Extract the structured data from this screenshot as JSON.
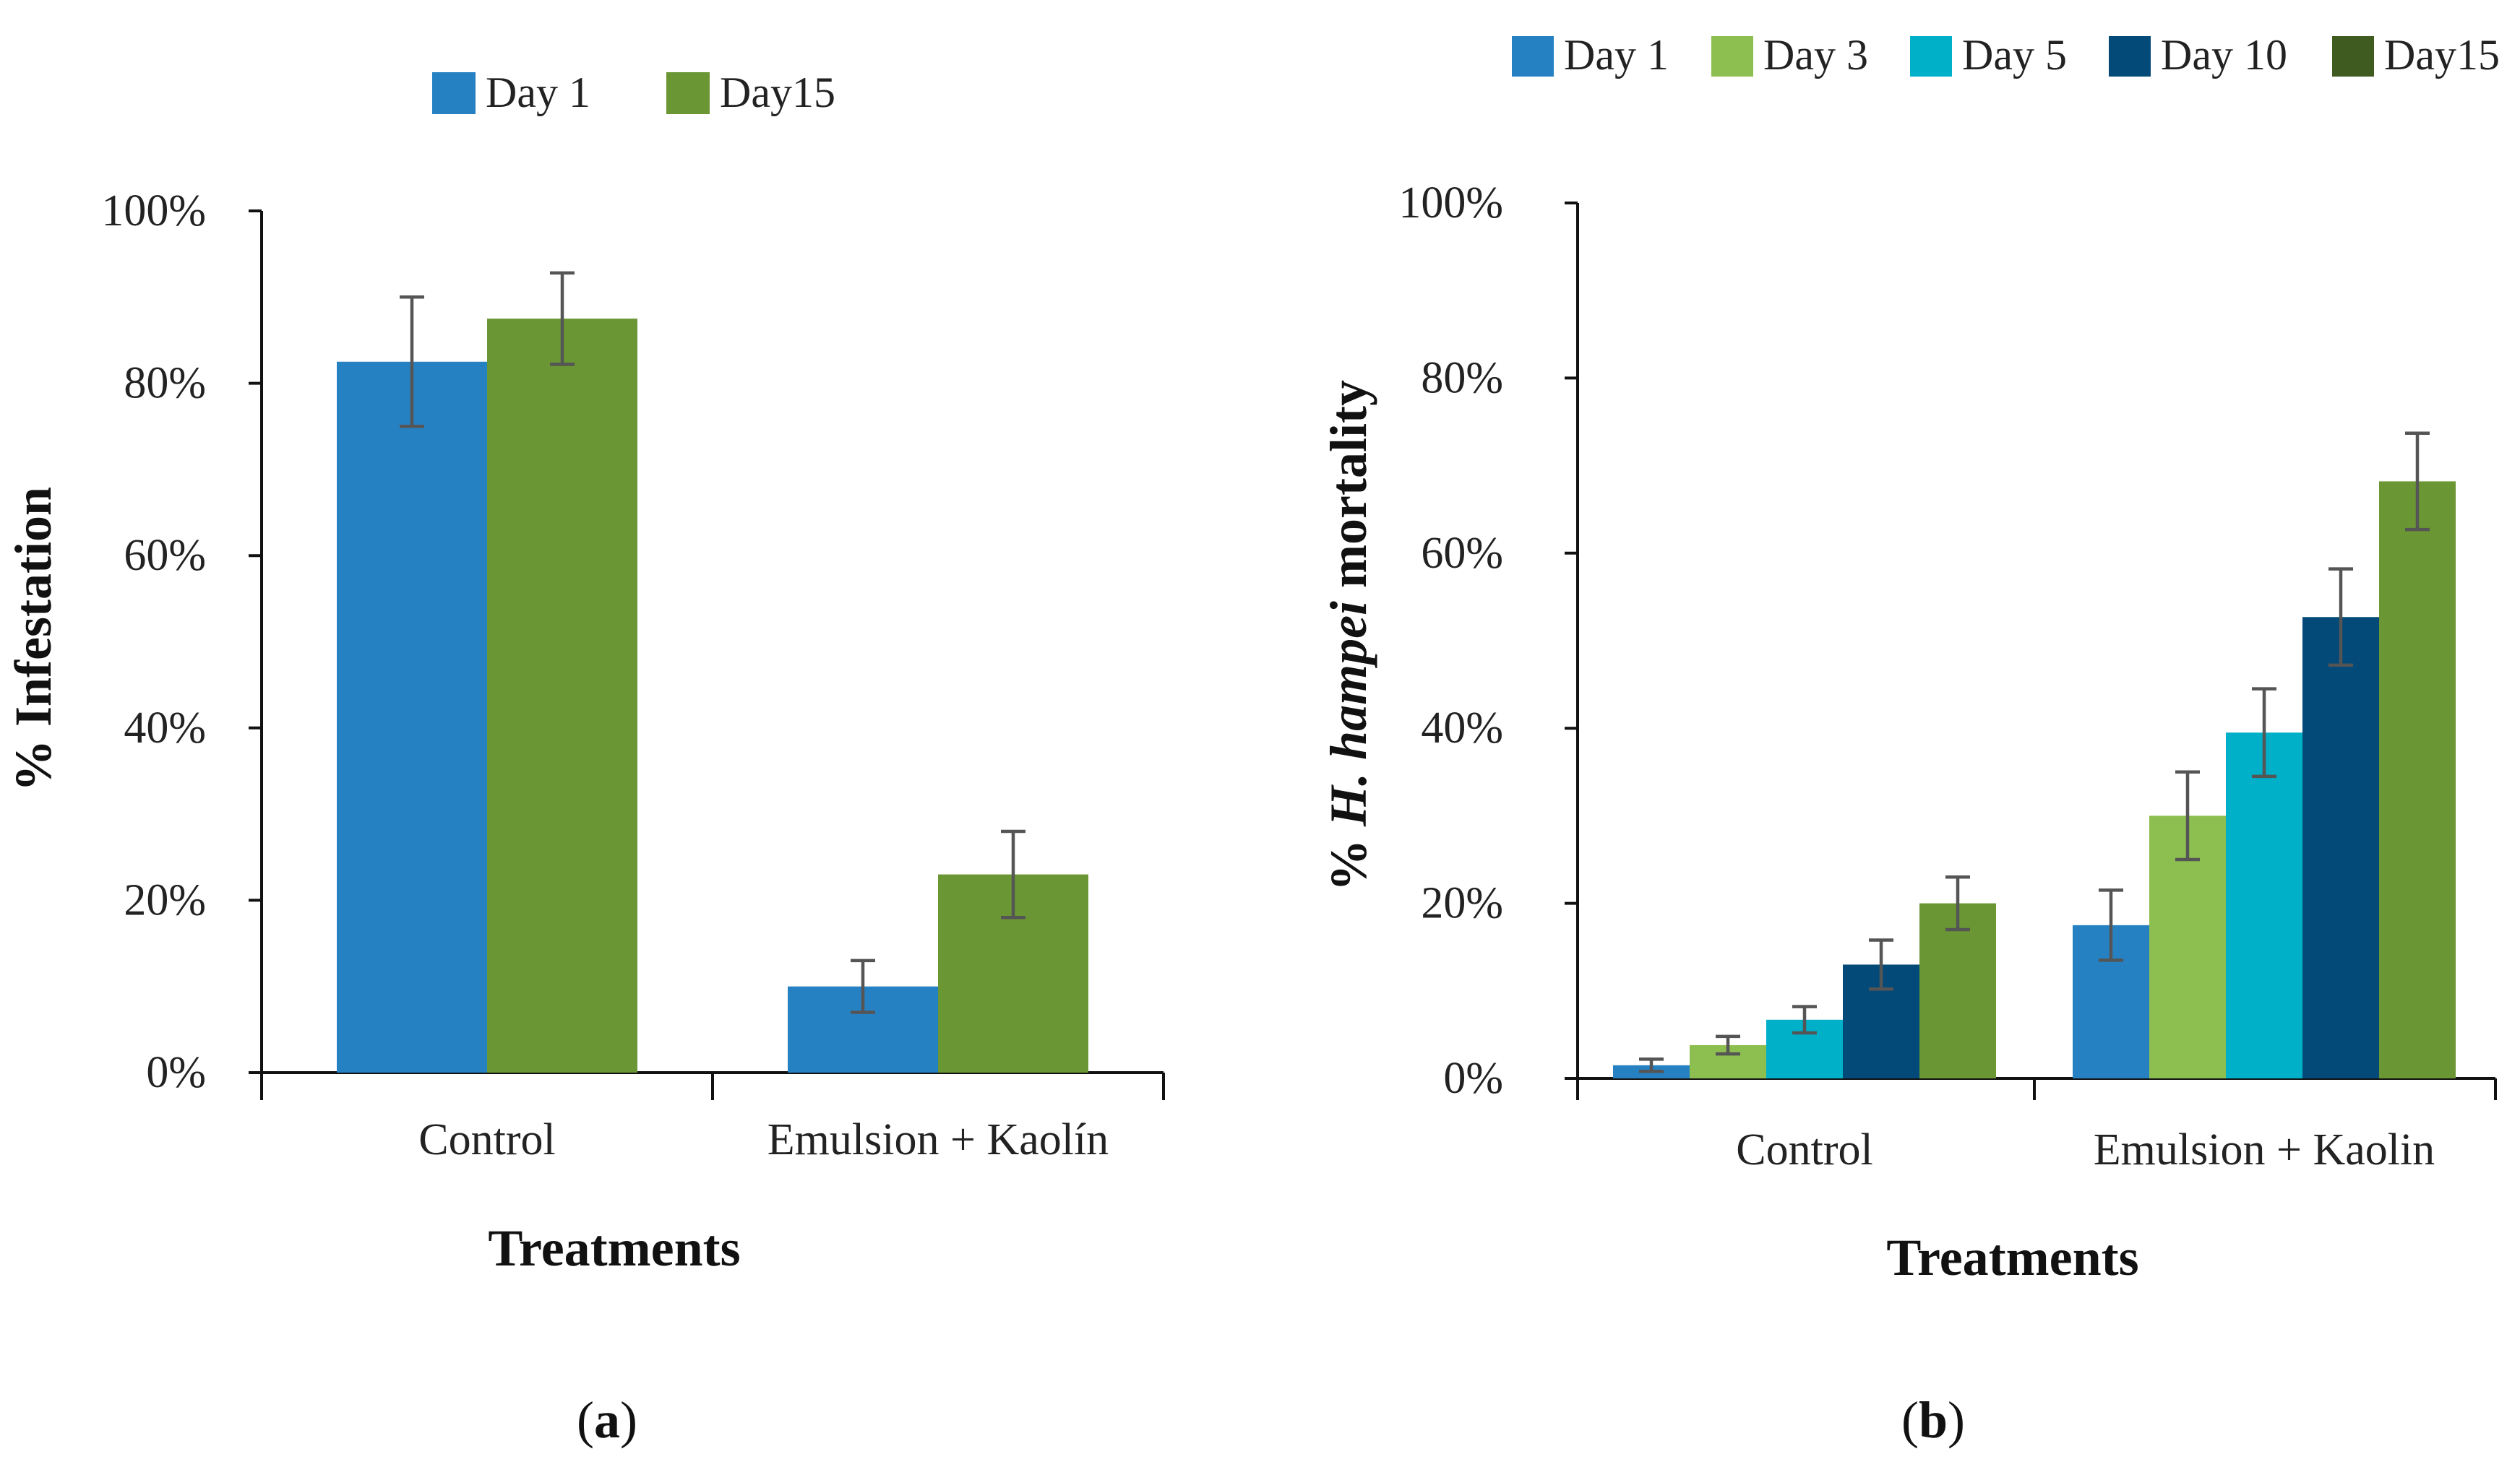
{
  "colors": {
    "day1": "#2681c3",
    "day3": "#8dbf50",
    "day5": "#00afc8",
    "day10": "#034a78",
    "day15_a": "#6a9633",
    "day15_b": "#6a9633",
    "day15_legend_b": "#3f5b1f",
    "axis": "#111111",
    "error_bar": "#555555"
  },
  "chart_data": [
    {
      "type": "bar",
      "panel_label": "a",
      "categories": [
        "Control",
        "Emulsion + Kaolín"
      ],
      "xlabel": "Treatments",
      "ylabel": "% Infestation",
      "ylim": [
        0,
        1
      ],
      "yticks": [
        "0%",
        "20%",
        "40%",
        "60%",
        "80%",
        "100%"
      ],
      "legend": {
        "placement": "top-center",
        "entries": [
          "Day 1",
          "Day15"
        ]
      },
      "grid": false,
      "series": [
        {
          "name": "Day 1",
          "color_key": "day1",
          "values": [
            0.825,
            0.1
          ],
          "errors": [
            0.075,
            0.03
          ]
        },
        {
          "name": "Day15",
          "color_key": "day15_a",
          "values": [
            0.875,
            0.23
          ],
          "errors": [
            0.053,
            0.05
          ]
        }
      ]
    },
    {
      "type": "bar",
      "panel_label": "b",
      "categories": [
        "Control",
        "Emulsion + Kaolin"
      ],
      "xlabel": "Treatments",
      "ylabel_parts": [
        "% ",
        "H. hampei",
        " mortality"
      ],
      "ylim": [
        0,
        1
      ],
      "yticks": [
        "0%",
        "20%",
        "40%",
        "60%",
        "80%",
        "100%"
      ],
      "legend": {
        "placement": "top",
        "entries": [
          "Day 1",
          "Day 3",
          "Day 5",
          "Day 10",
          "Day15"
        ]
      },
      "grid": false,
      "series": [
        {
          "name": "Day 1",
          "color_key": "day1",
          "values": [
            0.015,
            0.175
          ],
          "errors": [
            0.007,
            0.04
          ]
        },
        {
          "name": "Day 3",
          "color_key": "day3",
          "values": [
            0.038,
            0.3
          ],
          "errors": [
            0.01,
            0.05
          ]
        },
        {
          "name": "Day 5",
          "color_key": "day5",
          "values": [
            0.067,
            0.395
          ],
          "errors": [
            0.015,
            0.05
          ]
        },
        {
          "name": "Day 10",
          "color_key": "day10",
          "values": [
            0.13,
            0.527
          ],
          "errors": [
            0.028,
            0.055
          ]
        },
        {
          "name": "Day15",
          "color_key": "day15_b",
          "legend_color_key": "day15_legend_b",
          "values": [
            0.2,
            0.682
          ],
          "errors": [
            0.03,
            0.055
          ]
        }
      ]
    }
  ]
}
